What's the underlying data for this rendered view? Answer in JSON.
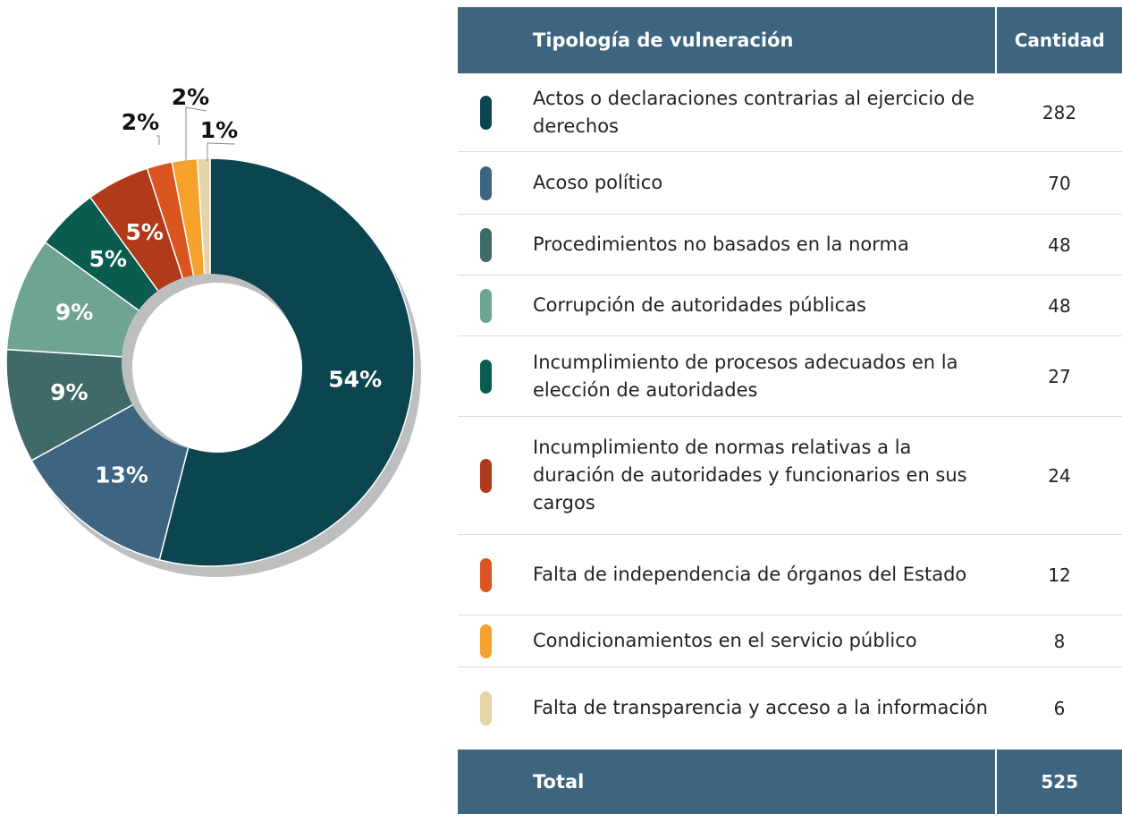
{
  "chart_data": {
    "type": "pie",
    "donut": true,
    "values": [
      54,
      13,
      9,
      9,
      5,
      5,
      2,
      2,
      1
    ],
    "value_labels": [
      "54%",
      "13%",
      "9%",
      "9%",
      "5%",
      "5%",
      "2%",
      "2%",
      "1%"
    ],
    "colors": [
      "#0b4550",
      "#3d6481",
      "#3f6a68",
      "#6fa393",
      "#0a5d4e",
      "#b03a1a",
      "#d9541e",
      "#f4a22c",
      "#e4d4a8"
    ]
  },
  "table": {
    "header": [
      "Tipología de vulneración",
      "Cantidad"
    ],
    "rows": [
      [
        "Actos o declaraciones contrarias al ejercicio de derechos",
        "282"
      ],
      [
        "Acoso político",
        "70"
      ],
      [
        "Procedimientos no basados en la norma",
        "48"
      ],
      [
        "Corrupción de autoridades públicas",
        "48"
      ],
      [
        "Incumplimiento de procesos adecuados en la elección de autoridades",
        "27"
      ],
      [
        "Incumplimiento de normas relativas a la duración de autoridades y funcionarios en sus cargos",
        "24"
      ],
      [
        "Falta de independencia de órganos del Estado",
        "12"
      ],
      [
        "Condicionamientos en el servicio público",
        "8"
      ],
      [
        "Falta de transparencia y acceso a la información",
        "6"
      ]
    ],
    "total": [
      "Total",
      "525"
    ]
  }
}
